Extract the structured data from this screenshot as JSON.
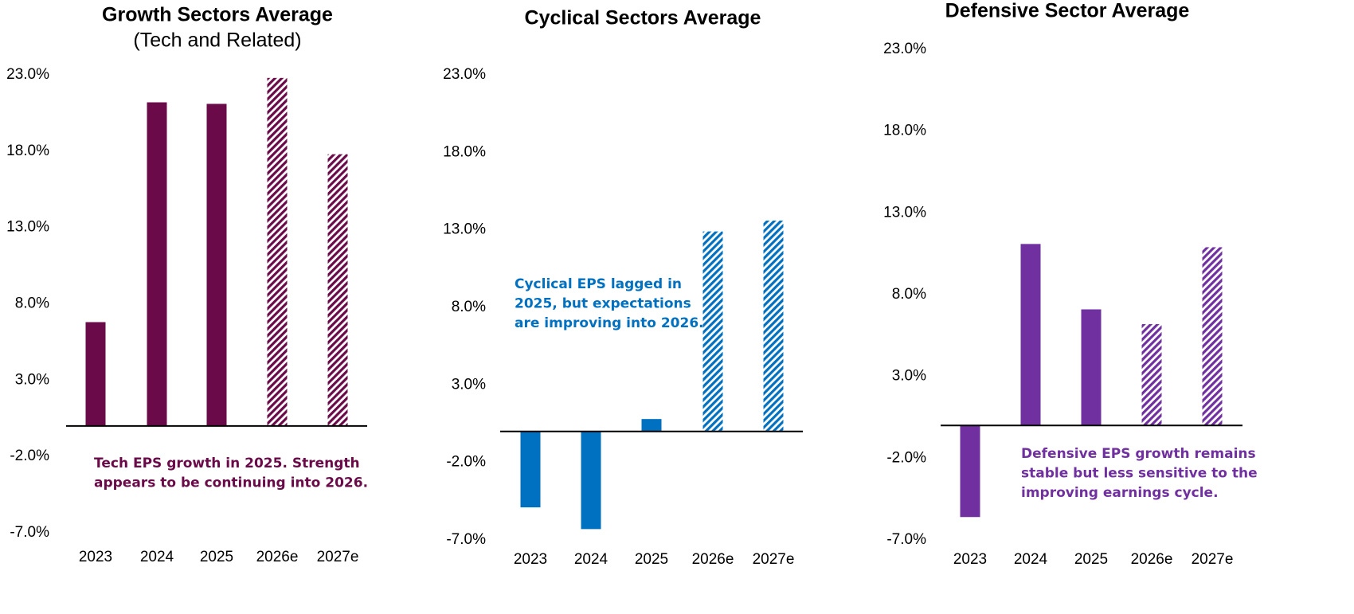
{
  "chart_data": [
    {
      "type": "bar",
      "title": "Growth Sectors Average",
      "subtitle": "(Tech and Related)",
      "categories": [
        "2023",
        "2024",
        "2025",
        "2026e",
        "2027e"
      ],
      "values": [
        6.8,
        21.2,
        21.1,
        22.8,
        17.8
      ],
      "hatched": [
        false,
        false,
        false,
        true,
        true
      ],
      "color": "#6b0a49",
      "ylim": [
        -7,
        23
      ],
      "yticks": [
        {
          "value": 23,
          "label": "23.0%"
        },
        {
          "value": 18,
          "label": "18.0%"
        },
        {
          "value": 13,
          "label": "13.0%"
        },
        {
          "value": 8,
          "label": "8.0%"
        },
        {
          "value": 3,
          "label": "3.0%"
        },
        {
          "value": -2,
          "label": "-2.0%"
        },
        {
          "value": -7,
          "label": "-7.0%"
        }
      ],
      "grid": false,
      "annotation": [
        "Tech EPS growth in 2025. Strength",
        "appears to be continuing into 2026."
      ]
    },
    {
      "type": "bar",
      "title": "Cyclical Sectors Average",
      "categories": [
        "2023",
        "2024",
        "2025",
        "2026e",
        "2027e"
      ],
      "values": [
        -4.9,
        -6.3,
        0.8,
        12.9,
        13.6
      ],
      "hatched": [
        false,
        false,
        false,
        true,
        true
      ],
      "color": "#0070c0",
      "ylim": [
        -7,
        23
      ],
      "yticks": [
        {
          "value": 23,
          "label": "23.0%"
        },
        {
          "value": 18,
          "label": "18.0%"
        },
        {
          "value": 13,
          "label": "13.0%"
        },
        {
          "value": 8,
          "label": "8.0%"
        },
        {
          "value": 3,
          "label": "3.0%"
        },
        {
          "value": -2,
          "label": "-2.0%"
        },
        {
          "value": -7,
          "label": "-7.0%"
        }
      ],
      "grid": false,
      "annotation": [
        "Cyclical EPS lagged in",
        "2025, but expectations",
        "are improving into 2026."
      ]
    },
    {
      "type": "bar",
      "title": "Defensive Sector Average",
      "categories": [
        "2023",
        "2024",
        "2025",
        "2026e",
        "2027e"
      ],
      "values": [
        -5.6,
        11.1,
        7.1,
        6.2,
        10.9
      ],
      "hatched": [
        false,
        false,
        false,
        true,
        true
      ],
      "color": "#7030a0",
      "ylim": [
        -7,
        23
      ],
      "yticks": [
        {
          "value": 23,
          "label": "23.0%"
        },
        {
          "value": 18,
          "label": "18.0%"
        },
        {
          "value": 13,
          "label": "13.0%"
        },
        {
          "value": 8,
          "label": "8.0%"
        },
        {
          "value": 3,
          "label": "3.0%"
        },
        {
          "value": -2,
          "label": "-2.0%"
        },
        {
          "value": -7,
          "label": "-7.0%"
        }
      ],
      "grid": false,
      "annotation": [
        "Defensive EPS growth remains",
        "stable but less sensitive to the",
        "improving earnings cycle."
      ]
    }
  ]
}
